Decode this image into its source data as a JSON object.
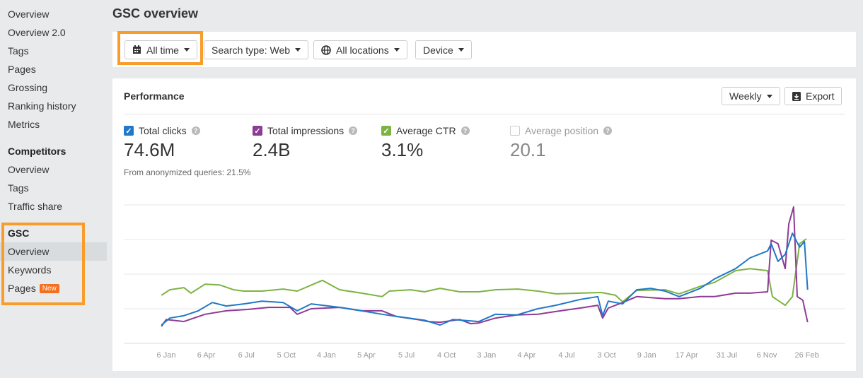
{
  "sidebar": {
    "items": [
      "Overview",
      "Overview 2.0",
      "Tags",
      "Pages",
      "Grossing",
      "Ranking history",
      "Metrics"
    ],
    "competitors": {
      "heading": "Competitors",
      "items": [
        "Overview",
        "Tags",
        "Traffic share"
      ]
    },
    "gsc": {
      "heading": "GSC",
      "items": [
        "Overview",
        "Keywords",
        "Pages"
      ],
      "new_badge": "New",
      "active": "Overview"
    }
  },
  "header": {
    "title": "GSC overview"
  },
  "filters": {
    "date": "All time",
    "search_type": "Search type: Web",
    "locations": "All locations",
    "device": "Device"
  },
  "performance": {
    "title": "Performance",
    "interval": "Weekly",
    "export": "Export",
    "metrics": [
      {
        "label": "Total clicks",
        "value": "74.6M",
        "checked": true,
        "color": "#1f78c8"
      },
      {
        "label": "Total impressions",
        "value": "2.4B",
        "checked": true,
        "color": "#8e3b96"
      },
      {
        "label": "Average CTR",
        "value": "3.1%",
        "checked": true,
        "color": "#7cb342"
      },
      {
        "label": "Average position",
        "value": "20.1",
        "checked": false,
        "color": "#cccccc"
      }
    ],
    "note": "From anonymized queries: 21.5%"
  },
  "chart_data": {
    "type": "line",
    "x_tick_labels": [
      "6 Jan",
      "6 Apr",
      "6 Jul",
      "5 Oct",
      "4 Jan",
      "5 Apr",
      "5 Jul",
      "4 Oct",
      "3 Jan",
      "4 Apr",
      "4 Jul",
      "3 Oct",
      "9 Jan",
      "17 Apr",
      "31 Jul",
      "6 Nov",
      "26 Feb"
    ],
    "ylim": [
      0,
      4
    ],
    "grid": true,
    "y_tick_labels_shown": false,
    "series": [
      {
        "key": "ctr",
        "color": "#7cb342",
        "points": [
          [
            -0.12,
            1.39
          ],
          [
            0.09,
            1.55
          ],
          [
            0.44,
            1.61
          ],
          [
            0.62,
            1.45
          ],
          [
            0.97,
            1.71
          ],
          [
            1.33,
            1.69
          ],
          [
            1.68,
            1.55
          ],
          [
            1.94,
            1.51
          ],
          [
            2.39,
            1.51
          ],
          [
            2.92,
            1.57
          ],
          [
            3.27,
            1.51
          ],
          [
            3.9,
            1.82
          ],
          [
            4.33,
            1.55
          ],
          [
            4.88,
            1.45
          ],
          [
            5.39,
            1.35
          ],
          [
            5.57,
            1.51
          ],
          [
            6.1,
            1.55
          ],
          [
            6.45,
            1.49
          ],
          [
            6.84,
            1.59
          ],
          [
            7.33,
            1.49
          ],
          [
            7.81,
            1.49
          ],
          [
            8.22,
            1.55
          ],
          [
            8.78,
            1.57
          ],
          [
            9.28,
            1.51
          ],
          [
            9.73,
            1.43
          ],
          [
            10.34,
            1.45
          ],
          [
            10.87,
            1.47
          ],
          [
            11.22,
            1.39
          ],
          [
            11.4,
            1.2
          ],
          [
            11.75,
            1.53
          ],
          [
            12.46,
            1.55
          ],
          [
            12.81,
            1.43
          ],
          [
            13.34,
            1.65
          ],
          [
            13.69,
            1.76
          ],
          [
            14.22,
            2.1
          ],
          [
            14.58,
            2.16
          ],
          [
            15.02,
            2.1
          ],
          [
            15.14,
            1.35
          ],
          [
            15.46,
            1.1
          ],
          [
            15.64,
            1.35
          ],
          [
            15.82,
            2.88
          ],
          [
            15.99,
            3.02
          ]
        ]
      },
      {
        "key": "impressions",
        "color": "#8e3b96",
        "points": [
          [
            -0.12,
            0.49
          ],
          [
            0.0,
            0.69
          ],
          [
            0.44,
            0.63
          ],
          [
            0.97,
            0.84
          ],
          [
            1.5,
            0.94
          ],
          [
            2.03,
            0.98
          ],
          [
            2.56,
            1.04
          ],
          [
            3.09,
            1.04
          ],
          [
            3.27,
            0.84
          ],
          [
            3.62,
            1.0
          ],
          [
            4.33,
            1.04
          ],
          [
            4.88,
            0.94
          ],
          [
            5.39,
            0.94
          ],
          [
            5.74,
            0.78
          ],
          [
            6.27,
            0.69
          ],
          [
            6.54,
            0.63
          ],
          [
            6.84,
            0.61
          ],
          [
            7.33,
            0.69
          ],
          [
            7.6,
            0.57
          ],
          [
            7.81,
            0.59
          ],
          [
            8.22,
            0.73
          ],
          [
            8.75,
            0.82
          ],
          [
            9.28,
            0.84
          ],
          [
            9.73,
            0.92
          ],
          [
            10.34,
            1.02
          ],
          [
            10.78,
            1.1
          ],
          [
            10.9,
            0.73
          ],
          [
            11.04,
            1.02
          ],
          [
            11.4,
            1.18
          ],
          [
            11.75,
            1.35
          ],
          [
            12.46,
            1.29
          ],
          [
            12.81,
            1.29
          ],
          [
            13.34,
            1.35
          ],
          [
            13.69,
            1.35
          ],
          [
            14.22,
            1.45
          ],
          [
            14.58,
            1.45
          ],
          [
            15.02,
            1.49
          ],
          [
            15.11,
            2.98
          ],
          [
            15.28,
            2.88
          ],
          [
            15.46,
            2.16
          ],
          [
            15.55,
            3.45
          ],
          [
            15.67,
            3.94
          ],
          [
            15.76,
            1.35
          ],
          [
            15.9,
            1.25
          ],
          [
            16.02,
            0.61
          ]
        ]
      },
      {
        "key": "clicks",
        "color": "#1f78c8",
        "points": [
          [
            -0.12,
            0.53
          ],
          [
            0.09,
            0.73
          ],
          [
            0.44,
            0.8
          ],
          [
            0.8,
            0.94
          ],
          [
            1.15,
            1.18
          ],
          [
            1.5,
            1.08
          ],
          [
            1.94,
            1.14
          ],
          [
            2.39,
            1.22
          ],
          [
            2.92,
            1.18
          ],
          [
            3.27,
            0.94
          ],
          [
            3.62,
            1.14
          ],
          [
            4.33,
            1.04
          ],
          [
            4.88,
            0.94
          ],
          [
            5.39,
            0.84
          ],
          [
            5.74,
            0.78
          ],
          [
            6.45,
            0.67
          ],
          [
            6.84,
            0.53
          ],
          [
            7.16,
            0.69
          ],
          [
            7.81,
            0.63
          ],
          [
            8.22,
            0.84
          ],
          [
            8.75,
            0.82
          ],
          [
            9.28,
            1.0
          ],
          [
            9.73,
            1.1
          ],
          [
            10.34,
            1.27
          ],
          [
            10.78,
            1.35
          ],
          [
            10.9,
            0.8
          ],
          [
            11.04,
            1.22
          ],
          [
            11.4,
            1.14
          ],
          [
            11.75,
            1.55
          ],
          [
            12.1,
            1.59
          ],
          [
            12.46,
            1.51
          ],
          [
            12.81,
            1.35
          ],
          [
            13.34,
            1.59
          ],
          [
            13.69,
            1.86
          ],
          [
            14.22,
            2.16
          ],
          [
            14.58,
            2.47
          ],
          [
            15.02,
            2.67
          ],
          [
            15.11,
            2.88
          ],
          [
            15.28,
            2.37
          ],
          [
            15.46,
            2.57
          ],
          [
            15.64,
            3.18
          ],
          [
            15.82,
            2.78
          ],
          [
            15.94,
            2.94
          ],
          [
            16.02,
            1.55
          ]
        ]
      }
    ]
  }
}
